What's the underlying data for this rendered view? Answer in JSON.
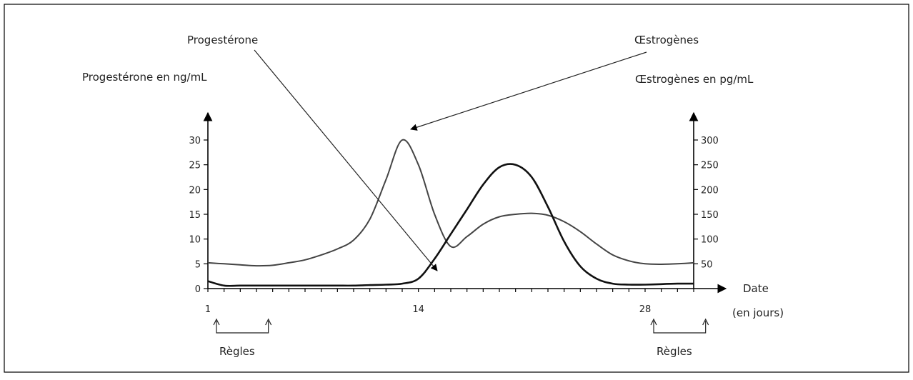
{
  "chart_data": {
    "type": "line",
    "y_left_label": "Progestérone en ng/mL",
    "y_right_label": "Œstrogènes en pg/mL",
    "x_label_line1": "Date",
    "x_label_line2": "(en jours)",
    "y_left_ticks": [
      "0",
      "5",
      "10",
      "15",
      "20",
      "25",
      "30"
    ],
    "y_right_ticks": [
      "50",
      "100",
      "150",
      "200",
      "250",
      "300"
    ],
    "x_ticks": [
      "1",
      "14",
      "28"
    ],
    "y_left_range": [
      0,
      30
    ],
    "y_right_range": [
      0,
      300
    ],
    "x_range": [
      1,
      31
    ],
    "annotation_progesterone": "Progestérone",
    "annotation_estrogenes": "Œstrogènes",
    "regles_label": "Règles",
    "regles_periods": [
      [
        1,
        5
      ],
      [
        28,
        32
      ]
    ],
    "series": [
      {
        "name": "Progestérone",
        "axis": "left",
        "color": "#111111",
        "x": [
          1,
          2,
          3,
          4,
          5,
          6,
          7,
          8,
          9,
          10,
          11,
          12,
          13,
          14,
          15,
          16,
          17,
          18,
          19,
          20,
          21,
          22,
          23,
          24,
          25,
          26,
          27,
          28,
          29,
          30,
          31
        ],
        "y": [
          1.5,
          0.6,
          0.6,
          0.6,
          0.6,
          0.6,
          0.6,
          0.6,
          0.6,
          0.6,
          0.7,
          0.8,
          1.0,
          2.0,
          6.0,
          11.0,
          16.0,
          21.0,
          24.5,
          25.0,
          22.5,
          16.5,
          9.5,
          4.5,
          2.0,
          1.0,
          0.8,
          0.8,
          0.9,
          1.0,
          1.0
        ]
      },
      {
        "name": "Œstrogènes",
        "axis": "right",
        "color": "#444444",
        "x": [
          1,
          2,
          3,
          4,
          5,
          6,
          7,
          8,
          9,
          10,
          11,
          12,
          13,
          14,
          15,
          16,
          17,
          18,
          19,
          20,
          21,
          22,
          23,
          24,
          25,
          26,
          27,
          28,
          29,
          30,
          31
        ],
        "y": [
          52,
          50,
          48,
          46,
          47,
          52,
          58,
          68,
          80,
          98,
          140,
          220,
          300,
          250,
          150,
          85,
          105,
          130,
          145,
          150,
          152,
          148,
          135,
          115,
          90,
          68,
          56,
          50,
          49,
          50,
          52
        ]
      }
    ]
  }
}
